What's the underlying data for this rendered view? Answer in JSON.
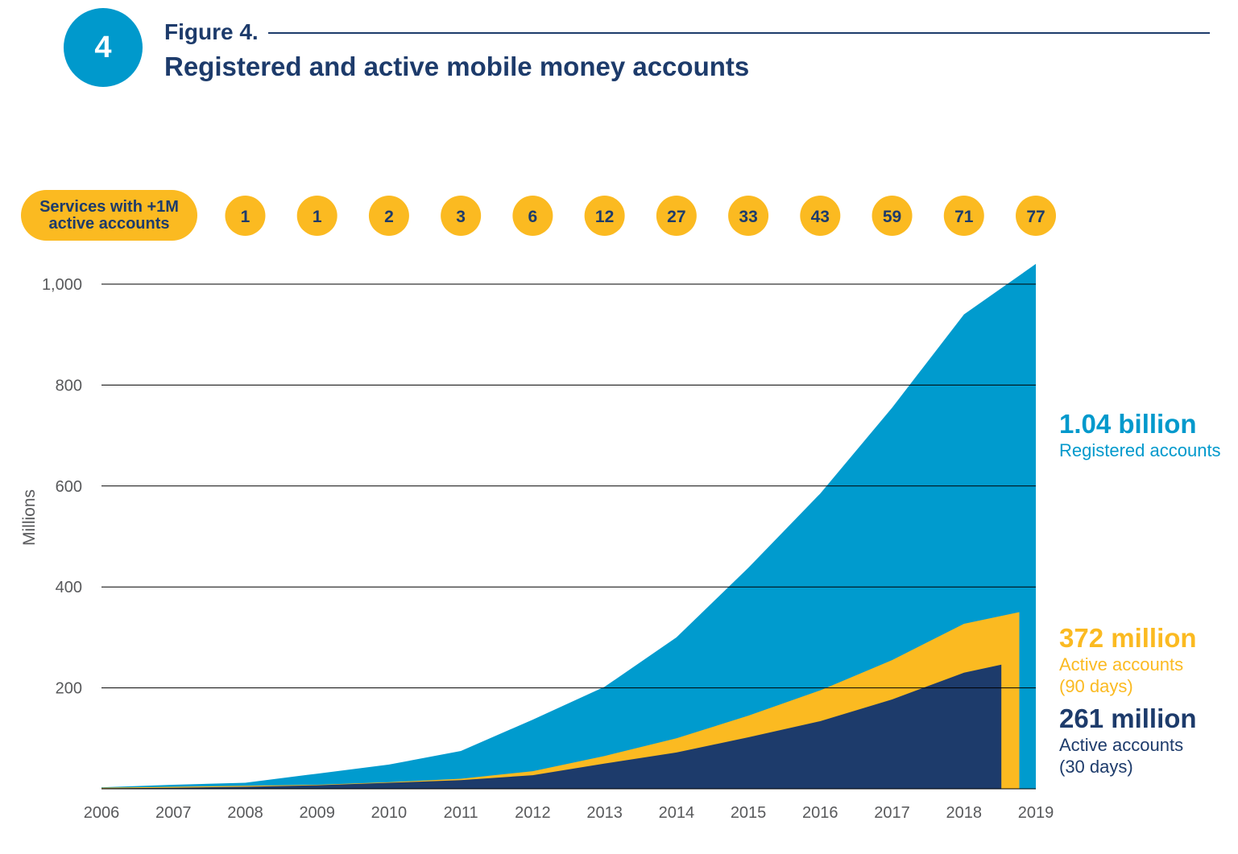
{
  "figure": {
    "number": "4",
    "label": "Figure 4.",
    "title": "Registered and active mobile money accounts"
  },
  "services": {
    "label_line1": "Services with +1M",
    "label_line2": "active accounts",
    "counts": [
      "1",
      "1",
      "2",
      "3",
      "6",
      "12",
      "27",
      "33",
      "43",
      "59",
      "71",
      "77"
    ]
  },
  "annotations": {
    "registered": {
      "value": "1.04 billion",
      "line1": "Registered accounts"
    },
    "active90": {
      "value": "372 million",
      "line1": "Active accounts",
      "line2": "(90 days)"
    },
    "active30": {
      "value": "261 million",
      "line1": "Active accounts",
      "line2": "(30 days)"
    }
  },
  "colors": {
    "registered": "#009bce",
    "active90": "#fbba21",
    "active30": "#1d3b6b",
    "axis_text": "#58595b",
    "gridline": "#000000"
  },
  "chart_data": {
    "type": "area",
    "ylabel": "Millions",
    "ylim": [
      0,
      1040
    ],
    "yticks": [
      200,
      400,
      600,
      800,
      1000
    ],
    "ytick_labels": [
      "200",
      "400",
      "600",
      "800",
      "1,000"
    ],
    "grid": true,
    "x_labels": [
      "2006",
      "2007",
      "2008",
      "2009",
      "2010",
      "2011",
      "2012",
      "2013",
      "2014",
      "2015",
      "2016",
      "2017",
      "2018",
      "2019"
    ],
    "series": [
      {
        "name": "Registered accounts",
        "color": "#009bce",
        "points": [
          [
            2006,
            3
          ],
          [
            2007,
            8
          ],
          [
            2008,
            12
          ],
          [
            2009,
            30
          ],
          [
            2010,
            48
          ],
          [
            2011,
            75
          ],
          [
            2012,
            137
          ],
          [
            2013,
            202
          ],
          [
            2014,
            300
          ],
          [
            2015,
            438
          ],
          [
            2016,
            585
          ],
          [
            2017,
            755
          ],
          [
            2018,
            940
          ],
          [
            2019,
            1040
          ]
        ]
      },
      {
        "name": "Active accounts (90 days)",
        "color": "#fbba21",
        "points": [
          [
            2006,
            2
          ],
          [
            2007,
            4
          ],
          [
            2008,
            6
          ],
          [
            2009,
            8
          ],
          [
            2010,
            13
          ],
          [
            2011,
            20
          ],
          [
            2012,
            35
          ],
          [
            2013,
            65
          ],
          [
            2014,
            100
          ],
          [
            2015,
            145
          ],
          [
            2016,
            195
          ],
          [
            2017,
            255
          ],
          [
            2018,
            327
          ],
          [
            2018.77,
            350
          ]
        ]
      },
      {
        "name": "Active accounts (30 days)",
        "color": "#1d3b6b",
        "points": [
          [
            2006,
            1
          ],
          [
            2007,
            2
          ],
          [
            2008,
            4
          ],
          [
            2009,
            7
          ],
          [
            2010,
            12
          ],
          [
            2011,
            17
          ],
          [
            2012,
            27
          ],
          [
            2013,
            50
          ],
          [
            2014,
            72
          ],
          [
            2015,
            102
          ],
          [
            2016,
            134
          ],
          [
            2017,
            177
          ],
          [
            2018,
            230
          ],
          [
            2018.52,
            246
          ]
        ]
      }
    ],
    "services_with_1m_active": [
      {
        "year": 2008,
        "count": 1
      },
      {
        "year": 2009,
        "count": 1
      },
      {
        "year": 2010,
        "count": 2
      },
      {
        "year": 2011,
        "count": 3
      },
      {
        "year": 2012,
        "count": 6
      },
      {
        "year": 2013,
        "count": 12
      },
      {
        "year": 2014,
        "count": 27
      },
      {
        "year": 2015,
        "count": 33
      },
      {
        "year": 2016,
        "count": 43
      },
      {
        "year": 2017,
        "count": 59
      },
      {
        "year": 2018,
        "count": 71
      },
      {
        "year": 2019,
        "count": 77
      }
    ]
  }
}
